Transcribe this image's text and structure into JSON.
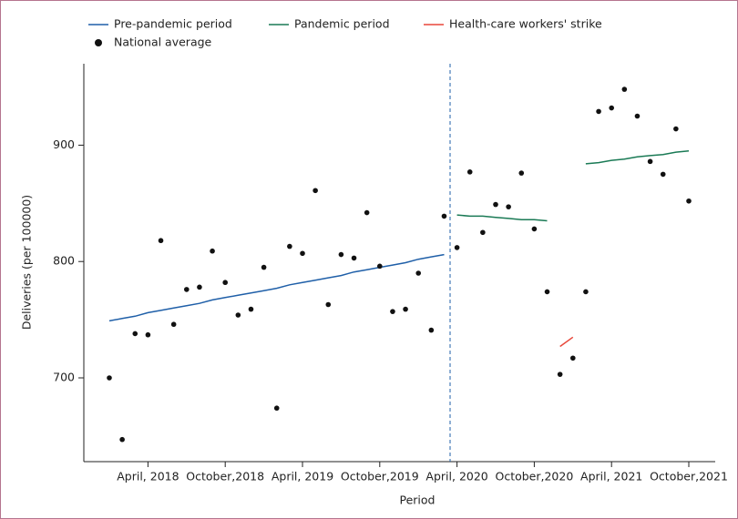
{
  "chart_data": {
    "type": "line",
    "x_label": "Period",
    "y_label": "Deliveries (per 100000)",
    "categories": [
      null,
      null,
      null,
      "April, 2018",
      null,
      null,
      null,
      null,
      null,
      "October,2018",
      null,
      null,
      null,
      null,
      null,
      "April, 2019",
      null,
      null,
      null,
      null,
      null,
      "October,2019",
      null,
      null,
      null,
      null,
      null,
      "April, 2020",
      null,
      null,
      null,
      null,
      null,
      "October,2020",
      null,
      null,
      null,
      null,
      null,
      "April, 2021",
      null,
      null,
      null,
      null,
      null,
      "October,2021"
    ],
    "ylim": [
      628,
      970
    ],
    "yticks": [
      700,
      800,
      900
    ],
    "series": [
      {
        "name": "Pre-pandemic period",
        "color": "#1f5fa8",
        "style": "line",
        "values": [
          749,
          751,
          753,
          756,
          758,
          760,
          762,
          764,
          767,
          769,
          771,
          773,
          775,
          777,
          780,
          782,
          784,
          786,
          788,
          791,
          793,
          795,
          797,
          799,
          802,
          804,
          806,
          null,
          null,
          null,
          null,
          null,
          null,
          null,
          null,
          null,
          null,
          null,
          null,
          null,
          null,
          null,
          null,
          null,
          null,
          null
        ]
      },
      {
        "name": "Pandemic period",
        "color": "#1a7a55",
        "style": "line",
        "values": [
          null,
          null,
          null,
          null,
          null,
          null,
          null,
          null,
          null,
          null,
          null,
          null,
          null,
          null,
          null,
          null,
          null,
          null,
          null,
          null,
          null,
          null,
          null,
          null,
          null,
          null,
          null,
          840,
          839,
          839,
          838,
          837,
          836,
          836,
          835,
          null,
          null,
          884,
          885,
          887,
          888,
          890,
          891,
          892,
          894,
          895
        ]
      },
      {
        "name": "Health-care workers' strike",
        "color": "#e8473a",
        "style": "line",
        "values": [
          null,
          null,
          null,
          null,
          null,
          null,
          null,
          null,
          null,
          null,
          null,
          null,
          null,
          null,
          null,
          null,
          null,
          null,
          null,
          null,
          null,
          null,
          null,
          null,
          null,
          null,
          null,
          null,
          null,
          null,
          null,
          null,
          null,
          null,
          null,
          727,
          735,
          null,
          null,
          null,
          null,
          null,
          null,
          null,
          null,
          null
        ]
      },
      {
        "name": "National average",
        "color": "#111111",
        "style": "point",
        "values": [
          700,
          647,
          738,
          737,
          818,
          746,
          776,
          778,
          809,
          782,
          754,
          759,
          795,
          674,
          813,
          807,
          861,
          763,
          806,
          803,
          842,
          796,
          757,
          759,
          790,
          741,
          839,
          812,
          877,
          825,
          849,
          847,
          876,
          828,
          774,
          703,
          717,
          774,
          929,
          932,
          948,
          925,
          886,
          875,
          914,
          852
        ]
      }
    ]
  }
}
